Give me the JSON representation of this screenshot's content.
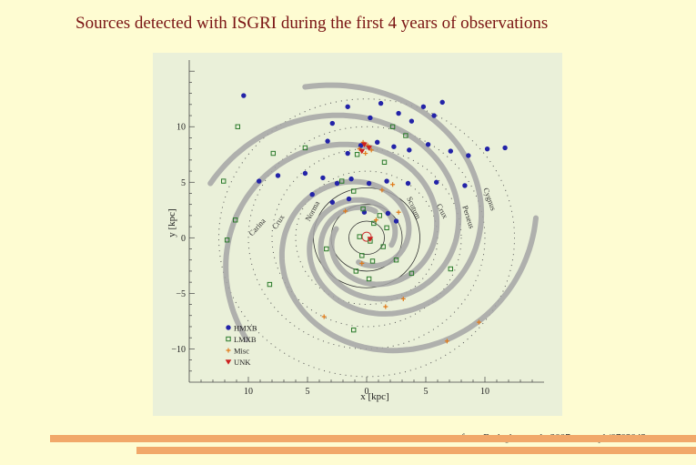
{
  "slide": {
    "title": "Sources detected with ISGRI during the first 4 years of observations",
    "credit": "from Bodaghee et al., 2007, astro-ph/0703043"
  },
  "chart_data": {
    "type": "scatter",
    "title": "",
    "xlabel": "x [kpc]",
    "ylabel": "y [kpc]",
    "xlim": [
      -15,
      15
    ],
    "ylim": [
      -13,
      16
    ],
    "x_ticks": [
      -10,
      -5,
      0,
      5,
      10
    ],
    "x_tick_labels": [
      "10",
      "5",
      "0",
      "5",
      "10"
    ],
    "y_ticks": [
      -10,
      -5,
      0,
      5,
      10
    ],
    "y_tick_labels": [
      "−10",
      "−5",
      "0",
      "5",
      "10"
    ],
    "grid": false,
    "legend_position": "bottom-left",
    "arm_labels": [
      {
        "text": "Cygnus",
        "x": 10.2,
        "y": 3.4
      },
      {
        "text": "Perseus",
        "x": 8.4,
        "y": 1.8
      },
      {
        "text": "Crux",
        "x": 6.2,
        "y": 2.3
      },
      {
        "text": "Scutum",
        "x": 3.8,
        "y": 2.6
      },
      {
        "text": "Norma",
        "x": -4.4,
        "y": 2.3
      },
      {
        "text": "Crux",
        "x": -7.3,
        "y": 1.3
      },
      {
        "text": "Carina",
        "x": -9.1,
        "y": 0.8
      }
    ],
    "series": [
      {
        "name": "HMXB",
        "marker": "circle",
        "color": "#2323a8",
        "points": [
          [
            -10.4,
            12.8
          ],
          [
            -1.6,
            11.8
          ],
          [
            1.2,
            12.1
          ],
          [
            2.7,
            11.2
          ],
          [
            3.8,
            10.5
          ],
          [
            4.8,
            11.8
          ],
          [
            6.4,
            12.2
          ],
          [
            5.7,
            11.0
          ],
          [
            -3.3,
            8.7
          ],
          [
            -0.5,
            8.3
          ],
          [
            0.9,
            8.6
          ],
          [
            2.3,
            8.2
          ],
          [
            3.6,
            7.9
          ],
          [
            5.2,
            8.4
          ],
          [
            7.1,
            7.8
          ],
          [
            8.6,
            7.4
          ],
          [
            10.2,
            8.0
          ],
          [
            11.7,
            8.1
          ],
          [
            -9.1,
            5.1
          ],
          [
            -7.5,
            5.6
          ],
          [
            -5.2,
            5.8
          ],
          [
            -3.7,
            5.4
          ],
          [
            -2.5,
            4.9
          ],
          [
            -1.3,
            5.3
          ],
          [
            0.2,
            4.9
          ],
          [
            1.7,
            5.1
          ],
          [
            3.5,
            4.9
          ],
          [
            5.9,
            5.0
          ],
          [
            8.3,
            4.7
          ],
          [
            -4.6,
            3.9
          ],
          [
            -2.9,
            3.2
          ],
          [
            -1.5,
            3.5
          ],
          [
            -0.2,
            2.3
          ],
          [
            1.8,
            2.2
          ],
          [
            2.5,
            1.5
          ],
          [
            -1.6,
            7.6
          ],
          [
            0.3,
            10.8
          ],
          [
            -2.9,
            10.3
          ]
        ]
      },
      {
        "name": "LMXB",
        "marker": "square",
        "color": "#2a7a2a",
        "points": [
          [
            -10.9,
            10.0
          ],
          [
            -7.9,
            7.6
          ],
          [
            -12.1,
            5.1
          ],
          [
            -11.1,
            1.6
          ],
          [
            -11.8,
            -0.2
          ],
          [
            -5.2,
            8.1
          ],
          [
            -2.1,
            5.1
          ],
          [
            -1.1,
            4.2
          ],
          [
            -0.3,
            2.6
          ],
          [
            1.1,
            2.0
          ],
          [
            0.6,
            1.3
          ],
          [
            1.7,
            0.9
          ],
          [
            -0.6,
            0.1
          ],
          [
            0.3,
            -0.3
          ],
          [
            1.4,
            -0.8
          ],
          [
            -0.4,
            -1.6
          ],
          [
            0.5,
            -2.1
          ],
          [
            -0.9,
            -3.0
          ],
          [
            0.2,
            -3.7
          ],
          [
            2.5,
            -2.0
          ],
          [
            3.8,
            -3.2
          ],
          [
            7.1,
            -2.8
          ],
          [
            -3.4,
            -1.0
          ],
          [
            -8.2,
            -4.2
          ],
          [
            -1.1,
            -8.3
          ],
          [
            2.2,
            10.0
          ],
          [
            3.3,
            9.2
          ],
          [
            -0.8,
            7.5
          ],
          [
            1.5,
            6.8
          ]
        ]
      },
      {
        "name": "Misc",
        "marker": "cross",
        "color": "#e07a1a",
        "points": [
          [
            -0.3,
            8.6
          ],
          [
            0.1,
            8.3
          ],
          [
            -0.6,
            8.0
          ],
          [
            0.4,
            7.9
          ],
          [
            -0.1,
            7.6
          ],
          [
            2.2,
            4.8
          ],
          [
            1.3,
            4.3
          ],
          [
            2.7,
            2.3
          ],
          [
            -1.8,
            2.4
          ],
          [
            0.8,
            1.6
          ],
          [
            -0.4,
            -2.3
          ],
          [
            3.1,
            -5.5
          ],
          [
            1.6,
            -6.2
          ],
          [
            9.5,
            -7.6
          ],
          [
            -3.6,
            -7.1
          ],
          [
            6.8,
            -9.3
          ]
        ]
      },
      {
        "name": "UNK",
        "marker": "triangle-down",
        "color": "#cc2020",
        "points": [
          [
            -0.2,
            8.4
          ],
          [
            0.2,
            8.1
          ],
          [
            -0.4,
            7.8
          ],
          [
            0.3,
            -0.1
          ]
        ]
      }
    ]
  }
}
